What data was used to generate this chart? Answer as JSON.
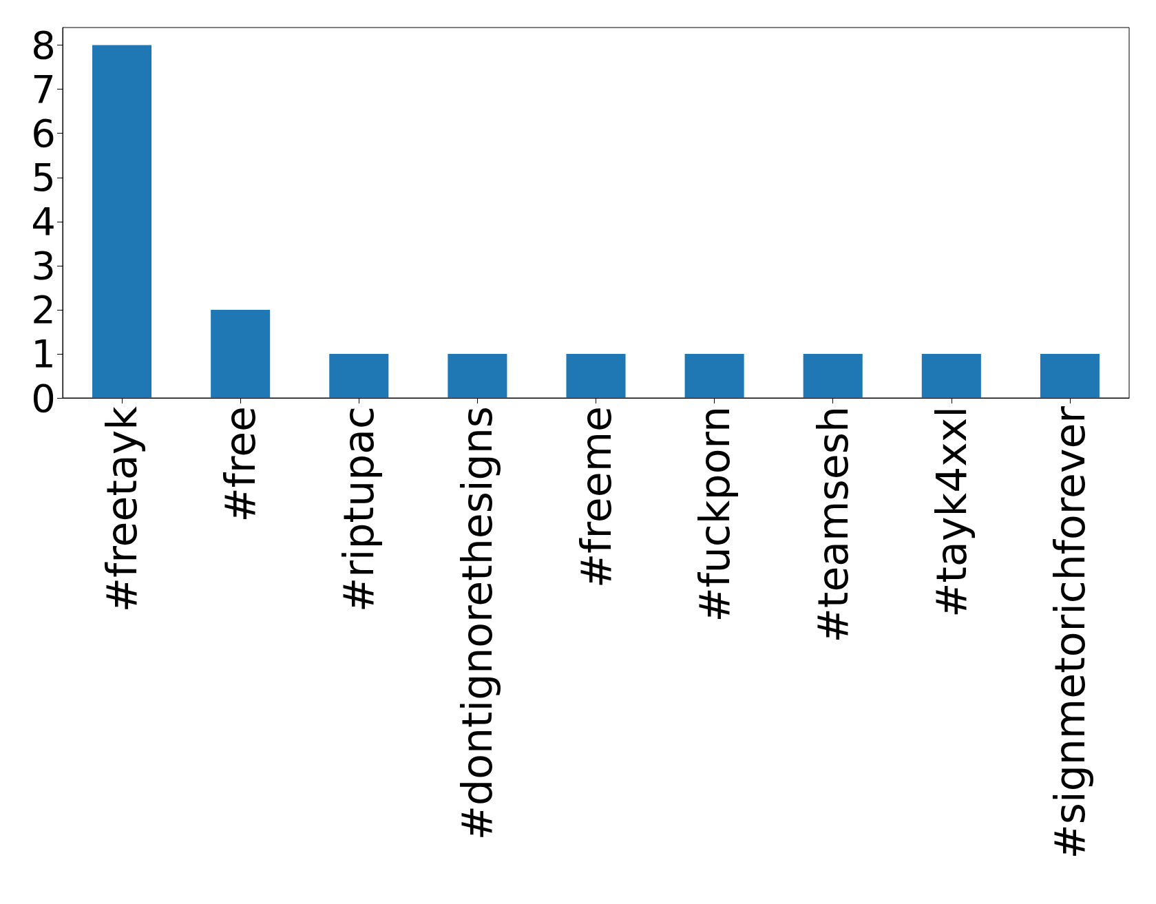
{
  "chart_data": {
    "type": "bar",
    "categories": [
      "#freetayk",
      "#free",
      "#riptupac",
      "#dontignorethesigns",
      "#freeme",
      "#fuckporn",
      "#teamsesh",
      "#tayk4xxl",
      "#signmetorichforever"
    ],
    "values": [
      8,
      2,
      1,
      1,
      1,
      1,
      1,
      1,
      1
    ],
    "color": "#1f77b4",
    "ylim": [
      0,
      8.4
    ],
    "yticks": [
      0,
      1,
      2,
      3,
      4,
      5,
      6,
      7,
      8
    ],
    "grid": false
  }
}
